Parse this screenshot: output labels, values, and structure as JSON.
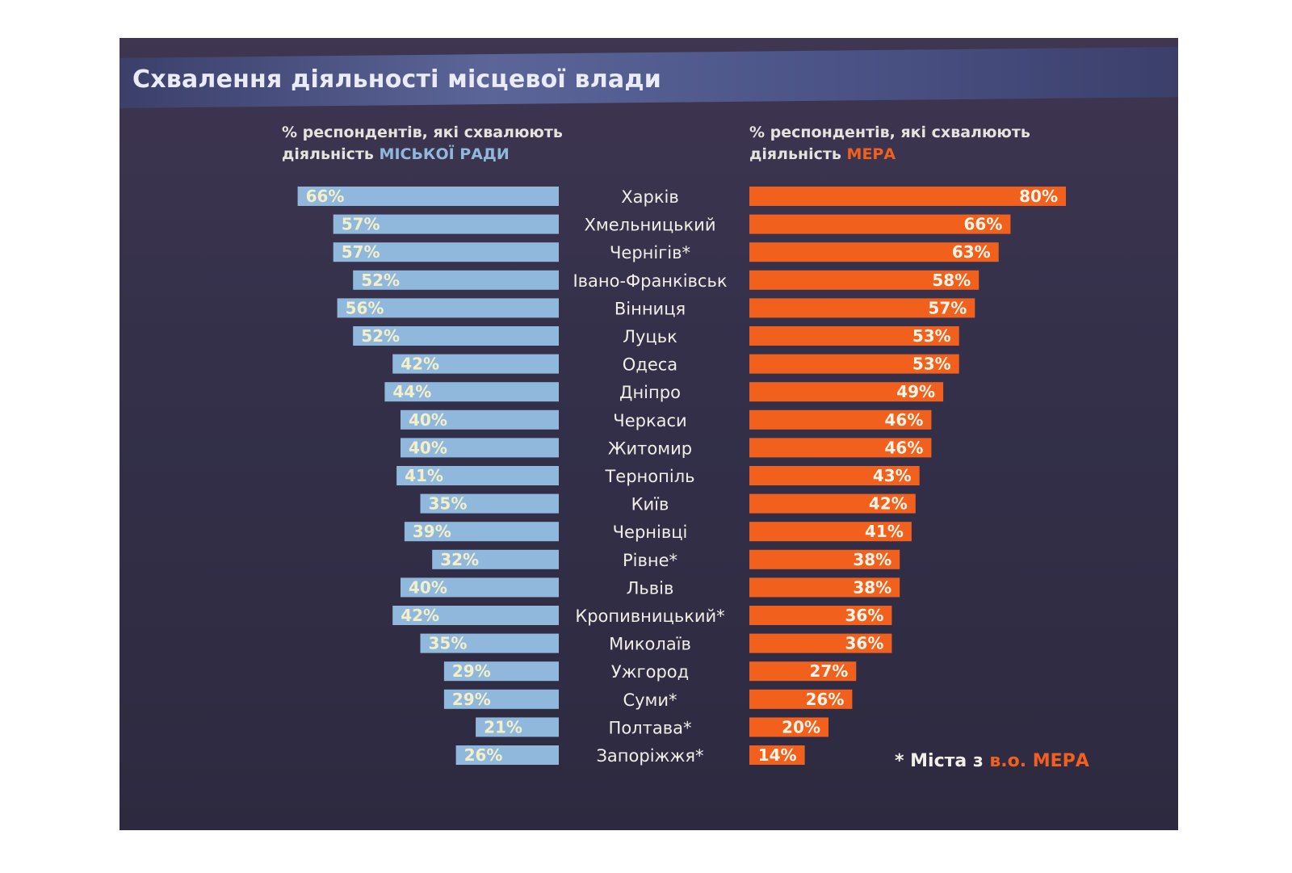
{
  "title": "Схвалення діяльності місцевої влади",
  "left_subtitle": {
    "line1": "% респондентів, які схвалюють",
    "line2_prefix": "діяльність ",
    "line2_highlight": "МІСЬКОЇ РАДИ"
  },
  "right_subtitle": {
    "line1": "% респондентів, які схвалюють",
    "line2_prefix": "діяльність ",
    "line2_highlight": "МЕРА"
  },
  "footnote": {
    "prefix": "* Міста з ",
    "highlight": "в.о. МЕРА"
  },
  "colors": {
    "council": "#8fb8dc",
    "mayor": "#f2601e",
    "label_on_council": "#f3efc9",
    "label_on_mayor": "#fff4e6"
  },
  "chart_data": {
    "type": "bar",
    "orientation": "horizontal-butterfly",
    "categories": [
      "Харків",
      "Хмельницький",
      "Чернігів*",
      "Івано-Франківськ",
      "Вінниця",
      "Луцьк",
      "Одеса",
      "Дніпро",
      "Черкаси",
      "Житомир",
      "Тернопіль",
      "Київ",
      "Чернівці",
      "Рівне*",
      "Львів",
      "Кропивницький*",
      "Миколаїв",
      "Ужгород",
      "Суми*",
      "Полтава*",
      "Запоріжжя*"
    ],
    "series": [
      {
        "values": [
          66,
          57,
          57,
          52,
          56,
          52,
          42,
          44,
          40,
          40,
          41,
          35,
          39,
          32,
          40,
          42,
          35,
          29,
          29,
          21,
          26
        ]
      },
      {
        "values": [
          80,
          66,
          63,
          58,
          57,
          53,
          53,
          49,
          46,
          46,
          43,
          42,
          41,
          38,
          38,
          36,
          36,
          27,
          26,
          20,
          14
        ]
      }
    ],
    "labels": [
      [
        "66%",
        "57%",
        "57%",
        "52%",
        "56%",
        "52%",
        "42%",
        "44%",
        "40%",
        "40%",
        "41%",
        "35%",
        "39%",
        "32%",
        "40%",
        "42%",
        "35%",
        "29%",
        "29%",
        "21%",
        "26%"
      ],
      [
        "80%",
        "66%",
        "63%",
        "58%",
        "57%",
        "53%",
        "53%",
        "49%",
        "46%",
        "46%",
        "43%",
        "42%",
        "41%",
        "38%",
        "38%",
        "36%",
        "36%",
        "27%",
        "26%",
        "20%",
        "14%"
      ]
    ]
  }
}
